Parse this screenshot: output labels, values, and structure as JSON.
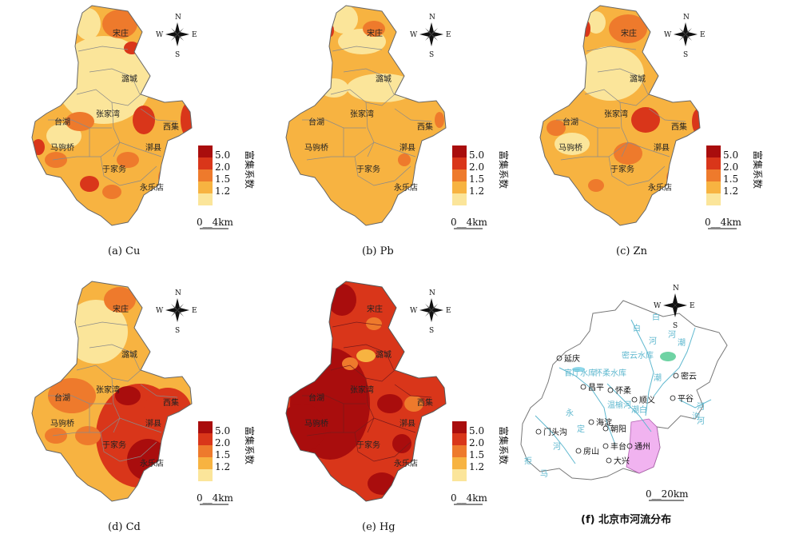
{
  "colors": {
    "c50": "#a90d0d",
    "c20": "#d9361a",
    "c15": "#ee7a2c",
    "c12": "#f7b341",
    "c10": "#fbe59a",
    "boundary": "#8a8a8a",
    "river": "#5fb8cf",
    "tongzhou": "#f1b3f0"
  },
  "legend": {
    "title": "富集系数",
    "levels": [
      "5.0",
      "2.0",
      "1.5",
      "1.2"
    ]
  },
  "scale_label": "0__4km",
  "compass": {
    "n": "N",
    "s": "S",
    "e": "E",
    "w": "W"
  },
  "place_labels": [
    "宋庄",
    "潞城",
    "台湖",
    "张家湾",
    "西集",
    "马驹桥",
    "漷县",
    "于家务",
    "永乐店"
  ],
  "panels": [
    {
      "id": "cu",
      "caption": "(a)  Cu",
      "tone": "mixed_low"
    },
    {
      "id": "pb",
      "caption": "(b)  Pb",
      "tone": "uniform_orange"
    },
    {
      "id": "zn",
      "caption": "(c)  Zn",
      "tone": "mixed_mid"
    },
    {
      "id": "cd",
      "caption": "(d)  Cd",
      "tone": "south_high"
    },
    {
      "id": "hg",
      "caption": "(e)  Hg",
      "tone": "very_high"
    }
  ],
  "beijing": {
    "caption": "(f)  北京市河流分布",
    "scale_label": "0__20km",
    "cities": [
      "延庆",
      "密云",
      "昌平",
      "怀柔",
      "顺义",
      "平谷",
      "门头沟",
      "海淀",
      "朝阳",
      "通州",
      "房山",
      "丰台",
      "大兴"
    ],
    "rivers": [
      "白",
      "河",
      "潮",
      "白",
      "河",
      "密云水库",
      "官厅水库",
      "怀柔水库",
      "潮",
      "温榆河",
      "潮白",
      "永",
      "定",
      "河",
      "拒",
      "马",
      "河",
      "泃",
      "河"
    ]
  }
}
